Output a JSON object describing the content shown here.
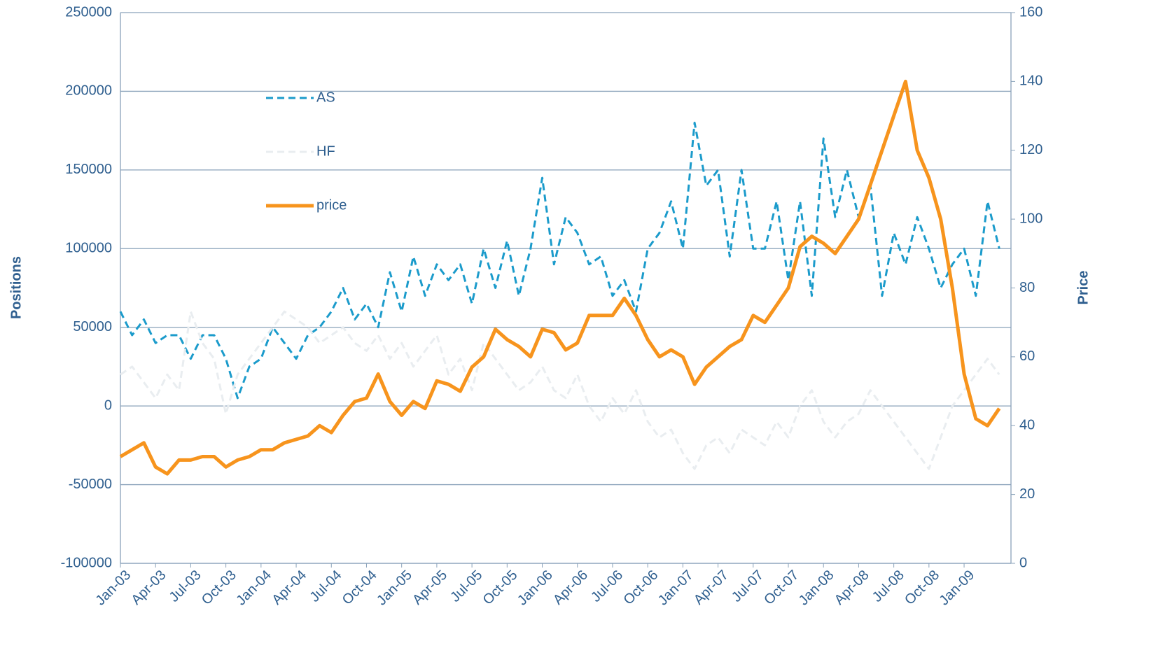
{
  "chart_data": {
    "type": "line",
    "y_label": "Positions",
    "y2_label": "Price",
    "categories": [
      "Jan-03",
      null,
      null,
      "Apr-03",
      null,
      null,
      "Jul-03",
      null,
      null,
      "Oct-03",
      null,
      null,
      "Jan-04",
      null,
      null,
      "Apr-04",
      null,
      null,
      "Jul-04",
      null,
      null,
      "Oct-04",
      null,
      null,
      "Jan-05",
      null,
      null,
      "Apr-05",
      null,
      null,
      "Jul-05",
      null,
      null,
      "Oct-05",
      null,
      null,
      "Jan-06",
      null,
      null,
      "Apr-06",
      null,
      null,
      "Jul-06",
      null,
      null,
      "Oct-06",
      null,
      null,
      "Jan-07",
      null,
      null,
      "Apr-07",
      null,
      null,
      "Jul-07",
      null,
      null,
      "Oct-07",
      null,
      null,
      "Jan-08",
      null,
      null,
      "Apr-08",
      null,
      null,
      "Jul-08",
      null,
      null,
      "Oct-08",
      null,
      null,
      "Jan-09",
      null,
      null,
      null
    ],
    "series": [
      {
        "name": "AS",
        "color": "#1b9bcb",
        "dash": true,
        "values": [
          60000,
          45000,
          55000,
          40000,
          45000,
          45000,
          30000,
          45000,
          45000,
          30000,
          5000,
          25000,
          30000,
          50000,
          40000,
          30000,
          45000,
          50000,
          60000,
          75000,
          55000,
          65000,
          50000,
          85000,
          60000,
          95000,
          70000,
          90000,
          80000,
          90000,
          65000,
          100000,
          75000,
          105000,
          70000,
          100000,
          145000,
          90000,
          120000,
          110000,
          90000,
          95000,
          70000,
          80000,
          60000,
          100000,
          110000,
          130000,
          100000,
          180000,
          140000,
          150000,
          95000,
          150000,
          100000,
          100000,
          130000,
          80000,
          130000,
          70000,
          170000,
          120000,
          150000,
          120000,
          140000,
          70000,
          110000,
          90000,
          120000,
          100000,
          75000,
          90000,
          100000,
          70000,
          130000,
          100000
        ]
      },
      {
        "name": "HF",
        "color": "#e9edf0",
        "dash": true,
        "values": [
          20000,
          25000,
          15000,
          5000,
          20000,
          10000,
          60000,
          40000,
          30000,
          -5000,
          20000,
          30000,
          40000,
          50000,
          60000,
          55000,
          50000,
          40000,
          45000,
          50000,
          40000,
          35000,
          45000,
          30000,
          40000,
          25000,
          35000,
          45000,
          20000,
          30000,
          10000,
          40000,
          30000,
          20000,
          10000,
          15000,
          25000,
          10000,
          5000,
          20000,
          0,
          -10000,
          5000,
          -5000,
          10000,
          -10000,
          -20000,
          -15000,
          -30000,
          -40000,
          -25000,
          -20000,
          -30000,
          -15000,
          -20000,
          -25000,
          -10000,
          -20000,
          0,
          10000,
          -10000,
          -20000,
          -10000,
          -5000,
          10000,
          0,
          -10000,
          -20000,
          -30000,
          -40000,
          -20000,
          0,
          10000,
          20000,
          30000,
          20000
        ]
      },
      {
        "name": "price",
        "color": "#f7941d",
        "axis": "y2",
        "values": [
          31,
          33,
          35,
          28,
          26,
          30,
          30,
          31,
          31,
          28,
          30,
          31,
          33,
          33,
          35,
          36,
          37,
          40,
          38,
          43,
          47,
          48,
          55,
          47,
          43,
          47,
          45,
          53,
          52,
          50,
          57,
          60,
          68,
          65,
          63,
          60,
          68,
          67,
          62,
          64,
          72,
          72,
          72,
          77,
          72,
          65,
          60,
          62,
          60,
          52,
          57,
          60,
          63,
          65,
          72,
          70,
          75,
          80,
          92,
          95,
          93,
          90,
          95,
          100,
          110,
          120,
          130,
          140,
          120,
          112,
          100,
          80,
          55,
          42,
          40,
          45
        ]
      }
    ],
    "ylim": [
      -100000,
      250000
    ],
    "yticks": [
      -100000,
      -50000,
      0,
      50000,
      100000,
      150000,
      200000,
      250000
    ],
    "y2lim": [
      0,
      160
    ],
    "y2ticks": [
      0,
      20,
      40,
      60,
      80,
      100,
      120,
      140,
      160
    ],
    "grid": true,
    "legend": "upper left"
  }
}
